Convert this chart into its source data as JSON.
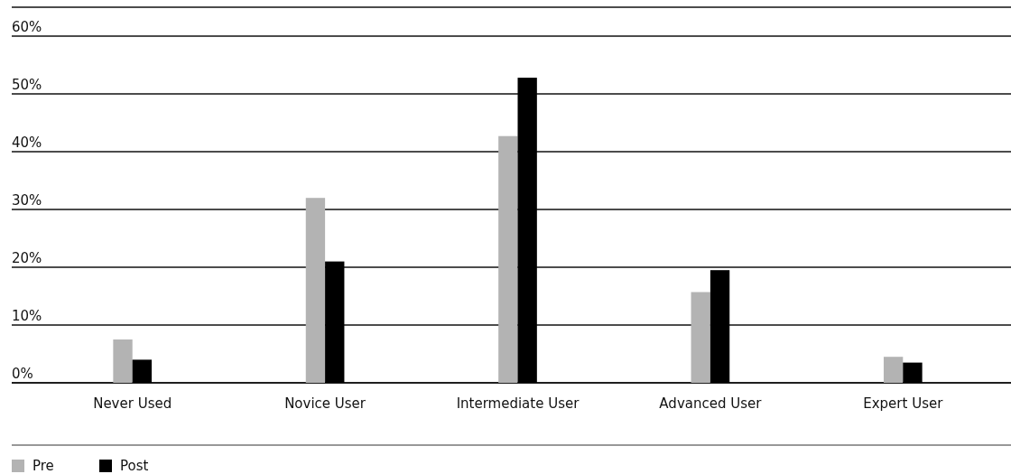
{
  "chart_data": {
    "type": "bar",
    "categories": [
      "Never Used",
      "Novice User",
      "Intermediate User",
      "Advanced User",
      "Expert User"
    ],
    "series": [
      {
        "name": "Pre",
        "color": "#b3b3b3",
        "values": [
          7.5,
          32,
          42.7,
          15.7,
          4.5
        ]
      },
      {
        "name": "Post",
        "color": "#000000",
        "values": [
          4,
          21,
          52.8,
          19.5,
          3.5
        ]
      }
    ],
    "ylim": [
      0,
      65
    ],
    "yticks": [
      {
        "value": 0,
        "label": "0%"
      },
      {
        "value": 10,
        "label": "10%"
      },
      {
        "value": 20,
        "label": "20%"
      },
      {
        "value": 30,
        "label": "30%"
      },
      {
        "value": 40,
        "label": "40%"
      },
      {
        "value": 50,
        "label": "50%"
      },
      {
        "value": 60,
        "label": "60%"
      }
    ],
    "grid": "y",
    "legend": "bottom left"
  }
}
